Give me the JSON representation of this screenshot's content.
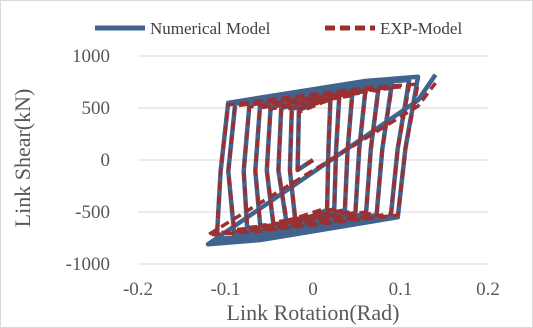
{
  "chart_data": {
    "type": "line",
    "xlabel": "Link Rotation(Rad)",
    "ylabel": "Link Shear(kN)",
    "xlim": [
      -0.2,
      0.2
    ],
    "ylim": [
      -1000,
      1000
    ],
    "x_ticks": [
      -0.2,
      -0.1,
      0,
      0.1,
      0.2
    ],
    "y_ticks": [
      -1000,
      -500,
      0,
      500,
      1000
    ],
    "x_tick_labels": [
      "-0.2",
      "-0.1",
      "0",
      "0.1",
      "0.2"
    ],
    "y_tick_labels": [
      "-1000",
      "-500",
      "0",
      "500",
      "1000"
    ],
    "grid": "horizontal",
    "legend_position": "top",
    "series": [
      {
        "name": "Numerical Model",
        "color": "#41648f",
        "style": "solid",
        "loops": [
          {
            "amp": 0.02,
            "peak_pos": 600,
            "peak_neg": -600,
            "yield": 480
          },
          {
            "amp": 0.03,
            "peak_pos": 620,
            "peak_neg": -620,
            "yield": 490
          },
          {
            "amp": 0.045,
            "peak_pos": 650,
            "peak_neg": -640,
            "yield": 500
          },
          {
            "amp": 0.06,
            "peak_pos": 680,
            "peak_neg": -660,
            "yield": 510
          },
          {
            "amp": 0.075,
            "peak_pos": 700,
            "peak_neg": -690,
            "yield": 520
          },
          {
            "amp": 0.09,
            "peak_pos": 730,
            "peak_neg": -720,
            "yield": 530
          },
          {
            "amp": 0.11,
            "peak_pos": 770,
            "peak_neg": -760,
            "yield": 540
          },
          {
            "amp": 0.12,
            "peak_pos": 800,
            "peak_neg": -810,
            "yield": 550
          }
        ],
        "final_point": [
          0.14,
          820
        ]
      },
      {
        "name": "EXP-Model",
        "color": "#9b3033",
        "style": "dashed",
        "loops": [
          {
            "amp": 0.02,
            "peak_pos": 580,
            "peak_neg": -560,
            "yield": 460
          },
          {
            "amp": 0.03,
            "peak_pos": 600,
            "peak_neg": -580,
            "yield": 470
          },
          {
            "amp": 0.045,
            "peak_pos": 620,
            "peak_neg": -600,
            "yield": 480
          },
          {
            "amp": 0.06,
            "peak_pos": 650,
            "peak_neg": -630,
            "yield": 490
          },
          {
            "amp": 0.075,
            "peak_pos": 670,
            "peak_neg": -650,
            "yield": 500
          },
          {
            "amp": 0.09,
            "peak_pos": 690,
            "peak_neg": -670,
            "yield": 510
          },
          {
            "amp": 0.11,
            "peak_pos": 710,
            "peak_neg": -700,
            "yield": 520
          },
          {
            "amp": 0.12,
            "peak_pos": 730,
            "peak_neg": -720,
            "yield": 530
          }
        ],
        "final_point": [
          0.14,
          740
        ]
      }
    ]
  }
}
